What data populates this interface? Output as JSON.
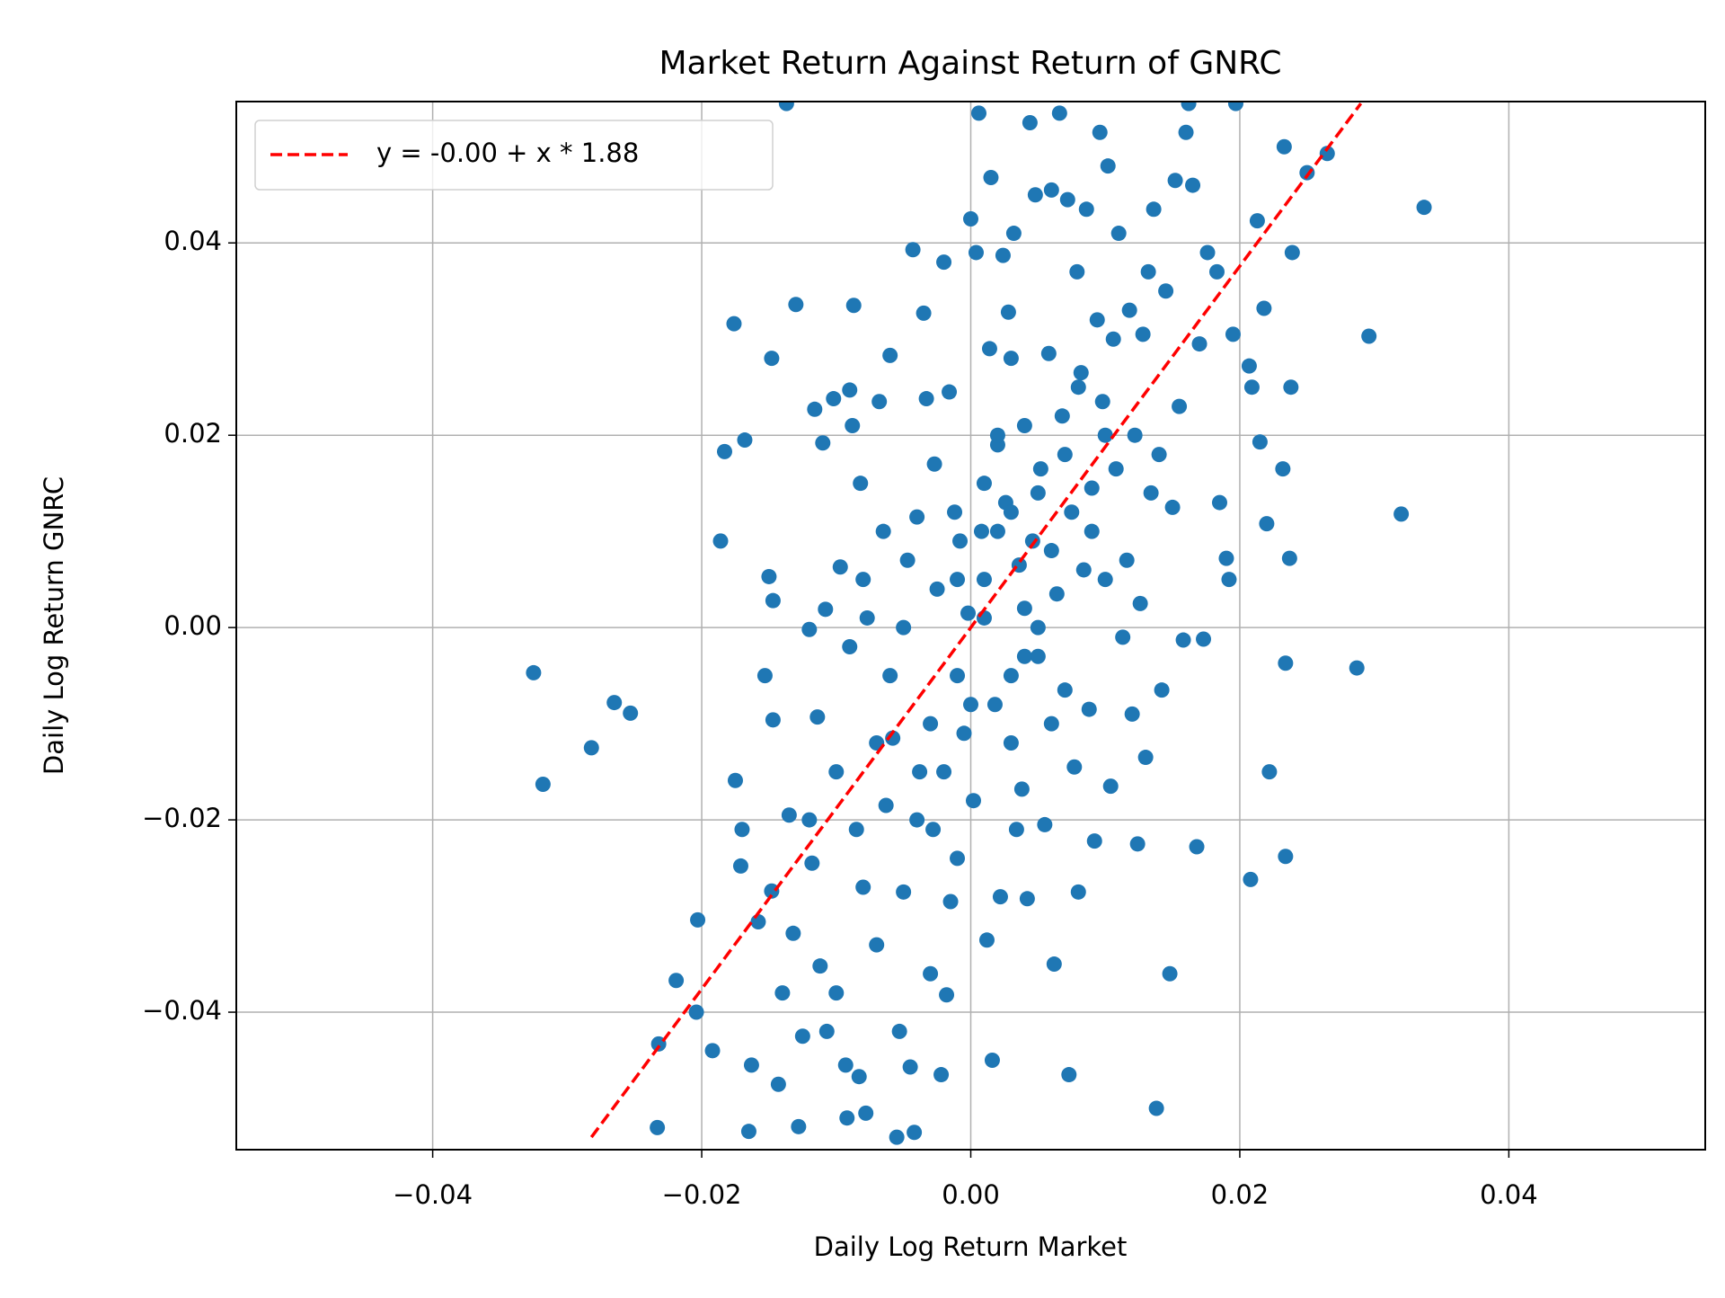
{
  "chart_data": {
    "type": "scatter",
    "title": "Market Return Against Return of GNRC",
    "x_label": "Daily Log Return Market",
    "y_label": "Daily Log Return GNRC",
    "xlim": [
      -0.0546,
      0.0546
    ],
    "ylim": [
      -0.0543,
      0.0547
    ],
    "xticks": [
      {
        "value": -0.04,
        "label": "−0.04"
      },
      {
        "value": -0.02,
        "label": "−0.02"
      },
      {
        "value": 0,
        "label": "0.00"
      },
      0.02,
      0.04
    ],
    "yticks": [
      {
        "value": -0.04,
        "label": "−0.04"
      },
      {
        "value": -0.02,
        "label": "−0.02"
      },
      {
        "value": 0,
        "label": "0.00"
      },
      0.02,
      0.04
    ],
    "grid": true,
    "legend": "upper left",
    "series": [
      {
        "type": "scatter",
        "color": "#1f77b4",
        "x": [
          -0.0325,
          -0.0318,
          -0.0282,
          -0.0265,
          -0.0253,
          -0.0233,
          -0.0232,
          -0.0219,
          -0.0203,
          -0.0204,
          -0.0192,
          -0.0186,
          -0.0183,
          -0.0176,
          -0.0175,
          -0.017,
          -0.0168,
          -0.0171,
          -0.0165,
          -0.0163,
          -0.0158,
          -0.0153,
          -0.015,
          -0.0148,
          -0.0147,
          -0.0147,
          -0.0148,
          -0.0143,
          -0.014,
          -0.0137,
          -0.013,
          -0.0135,
          -0.0132,
          -0.0128,
          -0.0125,
          -0.012,
          -0.0118,
          -0.0116,
          -0.0114,
          -0.0112,
          -0.011,
          -0.0108,
          -0.0107,
          -0.0102,
          -0.01,
          -0.0097,
          -0.0093,
          -0.0092,
          -0.009,
          -0.0088,
          -0.0087,
          -0.0085,
          -0.0083,
          -0.0082,
          -0.008,
          -0.0078,
          -0.0077,
          -0.007,
          -0.0068,
          -0.0065,
          -0.0063,
          -0.006,
          -0.0058,
          -0.0055,
          -0.0053,
          -0.005,
          -0.0047,
          -0.0045,
          -0.0043,
          -0.0042,
          -0.004,
          -0.0038,
          -0.0035,
          -0.0033,
          -0.003,
          -0.0028,
          -0.0027,
          -0.0025,
          -0.0022,
          -0.002,
          -0.0018,
          -0.0016,
          -0.0015,
          -0.0012,
          -0.001,
          -0.0008,
          -0.0005,
          -0.0002,
          0,
          0.0002,
          0.0004,
          0.0006,
          0.0008,
          0.001,
          0.0012,
          0.0014,
          0.0015,
          0.0016,
          0.0018,
          0.002,
          0.0022,
          0.0024,
          0.0026,
          0.0028,
          0.003,
          0.0032,
          0.0034,
          0.0036,
          0.0038,
          0.004,
          0.0042,
          0.0044,
          0.0046,
          0.0048,
          0.005,
          0.0052,
          0.0055,
          0.0058,
          0.006,
          0.0062,
          0.0064,
          0.0066,
          0.0068,
          0.007,
          0.0072,
          0.0073,
          0.0075,
          0.0077,
          0.0079,
          0.008,
          0.0082,
          0.0084,
          0.0086,
          0.0088,
          0.009,
          0.0092,
          0.0094,
          0.0096,
          0.0098,
          0.01,
          0.0102,
          0.0104,
          0.0106,
          0.0108,
          0.011,
          0.0113,
          0.0116,
          0.0118,
          0.012,
          0.0122,
          0.0124,
          0.0126,
          0.0128,
          0.013,
          0.0132,
          0.0134,
          0.0136,
          0.0138,
          0.014,
          0.0142,
          0.0145,
          0.0148,
          0.015,
          0.0152,
          0.0155,
          0.0158,
          0.016,
          0.0162,
          0.0165,
          0.0168,
          0.017,
          0.0173,
          0.0176,
          0.0183,
          0.0185,
          0.019,
          0.0192,
          0.0195,
          0.0197,
          0.0207,
          0.0208,
          0.0209,
          0.0213,
          0.0215,
          0.0218,
          0.022,
          0.0222,
          0.0232,
          0.0233,
          0.0234,
          0.0234,
          0.0237,
          0.0238,
          0.0239,
          0.025,
          0.0265,
          0.0287,
          0.0296,
          0.032,
          0.0337,
          0.002,
          0.003,
          -0.001,
          0.001,
          0.004,
          -0.003,
          0.005,
          0.006,
          -0.002,
          0,
          0.003,
          0.007,
          -0.004,
          0.002,
          -0.006,
          0.008,
          -0.007,
          0.001,
          -0.009,
          0.009,
          -0.005,
          0.004,
          -0.01,
          0.006,
          -0.008,
          0.01,
          -0.012,
          0.003,
          -0.001,
          0.005
        ],
        "y": [
          -0.0047,
          -0.0163,
          -0.0125,
          -0.0078,
          -0.0089,
          -0.052,
          -0.0433,
          -0.0367,
          -0.0304,
          -0.04,
          -0.044,
          0.009,
          0.0183,
          0.0316,
          -0.0159,
          -0.021,
          0.0195,
          -0.0248,
          -0.0524,
          -0.0455,
          -0.0306,
          -0.005,
          0.0053,
          -0.0274,
          0.0028,
          -0.0096,
          0.028,
          -0.0475,
          -0.038,
          0.0545,
          0.0336,
          -0.0195,
          -0.0318,
          -0.0519,
          -0.0425,
          -0.0002,
          -0.0245,
          0.0227,
          -0.0093,
          -0.0352,
          0.0192,
          0.0019,
          -0.042,
          0.0238,
          -0.038,
          0.0063,
          -0.0455,
          -0.051,
          0.0247,
          0.021,
          0.0335,
          -0.021,
          -0.0467,
          0.015,
          -0.027,
          -0.0505,
          0.001,
          -0.033,
          0.0235,
          0.01,
          -0.0185,
          0.0283,
          -0.0115,
          -0.053,
          -0.042,
          -0.0275,
          0.007,
          -0.0457,
          0.0393,
          -0.0525,
          0.0115,
          -0.015,
          0.0327,
          0.0238,
          -0.036,
          -0.021,
          0.017,
          0.004,
          -0.0465,
          0.038,
          -0.0382,
          0.0245,
          -0.0285,
          0.012,
          -0.024,
          0.009,
          -0.011,
          0.0015,
          0.0425,
          -0.018,
          0.039,
          0.0535,
          0.01,
          0.005,
          -0.0325,
          0.029,
          0.0468,
          -0.045,
          -0.008,
          0.019,
          -0.028,
          0.0387,
          0.013,
          0.0328,
          -0.005,
          0.041,
          -0.021,
          0.0065,
          -0.0168,
          0.021,
          -0.0282,
          0.0525,
          0.009,
          0.045,
          -0.003,
          0.0165,
          -0.0205,
          0.0285,
          0.0455,
          -0.035,
          0.0035,
          0.0535,
          0.022,
          -0.0065,
          0.0445,
          -0.0465,
          0.012,
          -0.0145,
          0.037,
          -0.0275,
          0.0265,
          0.006,
          0.0435,
          -0.0085,
          0.0145,
          -0.0222,
          0.032,
          0.0515,
          0.0235,
          0.005,
          0.048,
          -0.0165,
          0.03,
          0.0165,
          0.041,
          -0.001,
          0.007,
          0.033,
          -0.009,
          0.02,
          -0.0225,
          0.0025,
          0.0305,
          -0.0135,
          0.037,
          0.014,
          0.0435,
          -0.05,
          0.018,
          -0.0065,
          0.035,
          -0.036,
          0.0125,
          0.0465,
          0.023,
          -0.0013,
          0.0515,
          0.0545,
          0.046,
          -0.0228,
          0.0295,
          -0.0012,
          0.039,
          0.037,
          0.013,
          0.0072,
          0.005,
          0.0305,
          0.0545,
          0.0272,
          -0.0262,
          0.025,
          0.0423,
          0.0193,
          0.0332,
          0.0108,
          -0.015,
          0.0165,
          0.05,
          -0.0037,
          -0.0238,
          0.0072,
          0.025,
          0.039,
          0.0473,
          0.0493,
          -0.0042,
          0.0303,
          0.0118,
          0.0437,
          0.01,
          0.012,
          -0.005,
          0.001,
          0.002,
          -0.01,
          0.014,
          0.008,
          -0.015,
          -0.008,
          -0.012,
          0.018,
          -0.02,
          0.02,
          -0.005,
          0.025,
          -0.012,
          0.015,
          -0.002,
          0.01,
          0,
          -0.003,
          -0.015,
          -0.01,
          0.005,
          0.02,
          -0.02,
          0.028,
          0.005,
          0
        ]
      },
      {
        "type": "line",
        "name": "y = -0.00 + x * 1.88",
        "color": "#ff0000",
        "dashed": true,
        "x": [
          -0.0282,
          0.029
        ],
        "y": [
          -0.053,
          0.0545
        ]
      }
    ]
  }
}
